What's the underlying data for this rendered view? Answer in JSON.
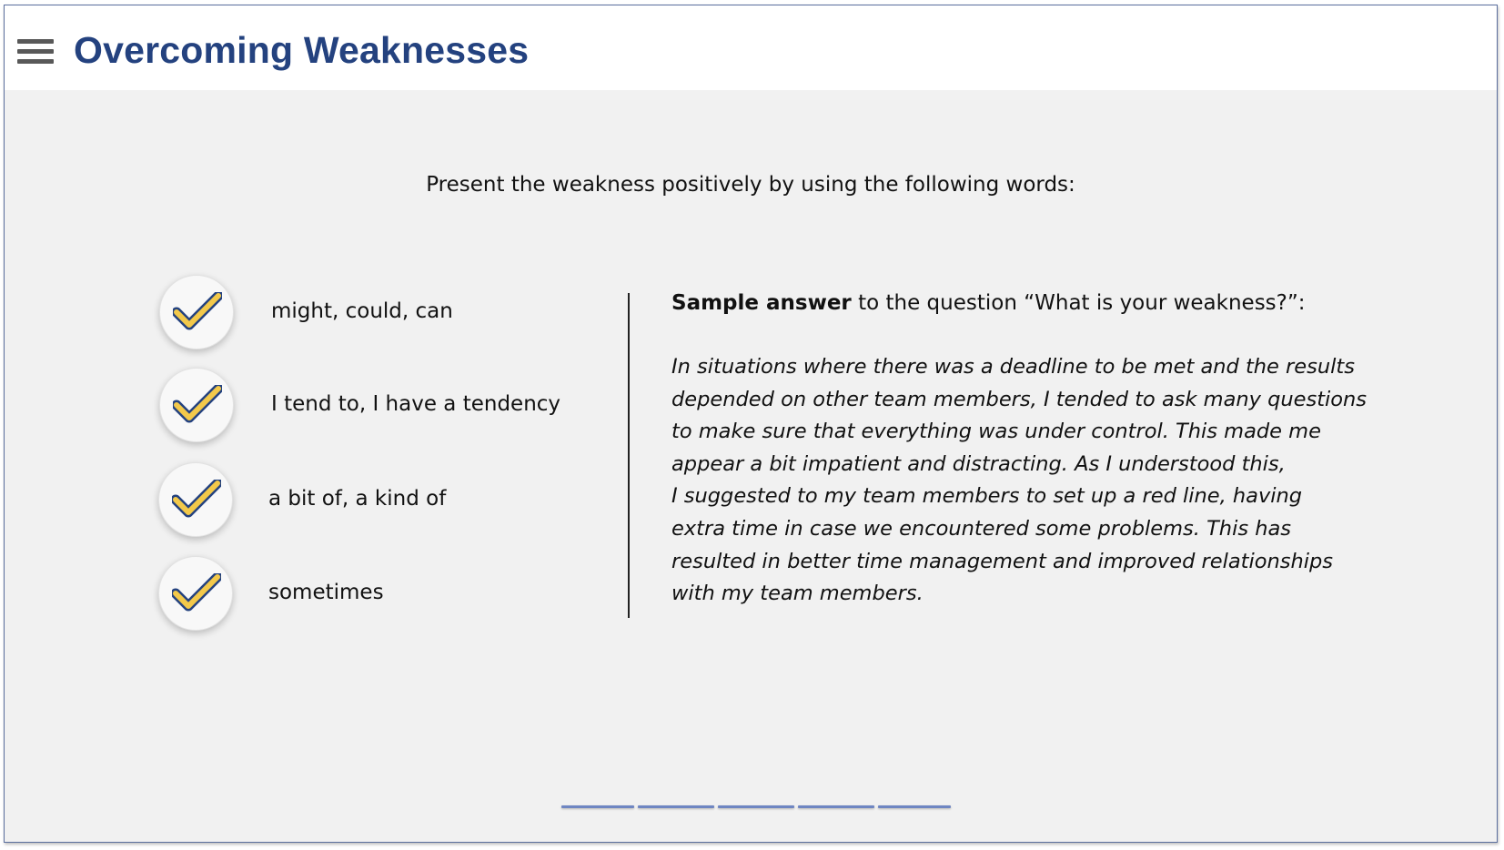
{
  "header": {
    "menu_icon": "hamburger-menu-icon",
    "title": "Overcoming Weaknesses"
  },
  "intro": "Present the weakness positively by using the following words:",
  "words": [
    {
      "icon": "check-icon",
      "label": "might, could, can"
    },
    {
      "icon": "check-icon",
      "label": "I tend to, I have a tendency"
    },
    {
      "icon": "check-icon",
      "label": "a bit of, a kind of"
    },
    {
      "icon": "check-icon",
      "label": "sometimes"
    }
  ],
  "sample": {
    "question_bold": "Sample answer",
    "question_rest": " to the question “What is your weakness?”:",
    "answer": "In situations where there was a deadline to be met and the results\ndepended on other team members, I tended to ask many questions\nto make sure that everything was under control. This made me\nappear a bit impatient and distracting. As I understood this,\nI suggested to my team members to set up a red line, having\nextra time in case we encountered some problems. This has\nresulted in better time management and improved relationships\nwith my team members."
  },
  "progress": {
    "segments": 5,
    "color": "#6f86c2"
  },
  "colors": {
    "title": "#24427f",
    "check_fill": "#f3c94a",
    "check_outline": "#24427f",
    "background": "#f1f1f1"
  }
}
